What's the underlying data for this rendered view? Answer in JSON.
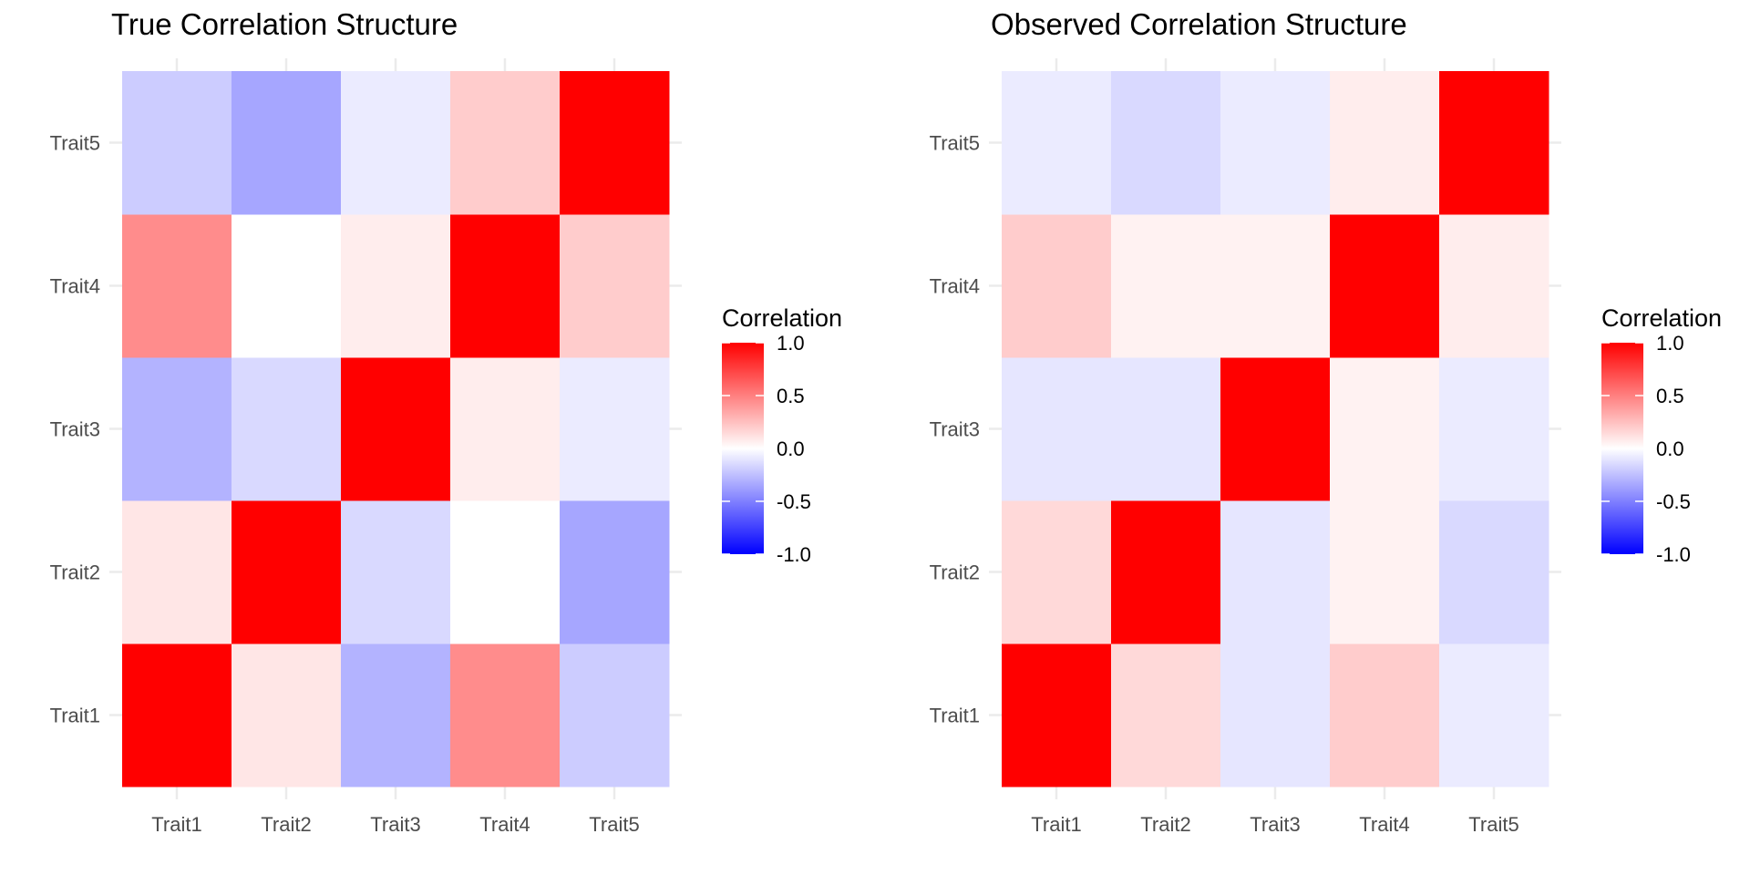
{
  "chart_data": [
    {
      "type": "heatmap",
      "title": "True Correlation Structure",
      "x_categories": [
        "Trait1",
        "Trait2",
        "Trait3",
        "Trait4",
        "Trait5"
      ],
      "y_categories": [
        "Trait1",
        "Trait2",
        "Trait3",
        "Trait4",
        "Trait5"
      ],
      "values": [
        [
          1.0,
          0.1,
          -0.3,
          0.45,
          -0.2
        ],
        [
          0.1,
          1.0,
          -0.15,
          0.0,
          -0.35
        ],
        [
          -0.3,
          -0.15,
          1.0,
          0.07,
          -0.08
        ],
        [
          0.45,
          0.0,
          0.07,
          1.0,
          0.2
        ],
        [
          -0.2,
          -0.35,
          -0.08,
          0.2,
          1.0
        ]
      ],
      "legend": {
        "title": "Correlation",
        "limits": [
          -1.0,
          1.0
        ],
        "ticks": [
          "1.0",
          "0.5",
          "0.0",
          "-0.5",
          "-1.0"
        ],
        "tick_values": [
          1.0,
          0.5,
          0.0,
          -0.5,
          -1.0
        ],
        "low_color": "#0000ff",
        "mid_color": "#ffffff",
        "high_color": "#ff0000"
      },
      "grid": true
    },
    {
      "type": "heatmap",
      "title": "Observed Correlation Structure",
      "x_categories": [
        "Trait1",
        "Trait2",
        "Trait3",
        "Trait4",
        "Trait5"
      ],
      "y_categories": [
        "Trait1",
        "Trait2",
        "Trait3",
        "Trait4",
        "Trait5"
      ],
      "values": [
        [
          1.0,
          0.15,
          -0.1,
          0.2,
          -0.08
        ],
        [
          0.15,
          1.0,
          -0.1,
          0.05,
          -0.15
        ],
        [
          -0.1,
          -0.1,
          1.0,
          0.05,
          -0.08
        ],
        [
          0.2,
          0.05,
          0.05,
          1.0,
          0.07
        ],
        [
          -0.08,
          -0.15,
          -0.08,
          0.07,
          1.0
        ]
      ],
      "legend": {
        "title": "Correlation",
        "limits": [
          -1.0,
          1.0
        ],
        "ticks": [
          "1.0",
          "0.5",
          "0.0",
          "-0.5",
          "-1.0"
        ],
        "tick_values": [
          1.0,
          0.5,
          0.0,
          -0.5,
          -1.0
        ],
        "low_color": "#0000ff",
        "mid_color": "#ffffff",
        "high_color": "#ff0000"
      },
      "grid": true
    }
  ]
}
